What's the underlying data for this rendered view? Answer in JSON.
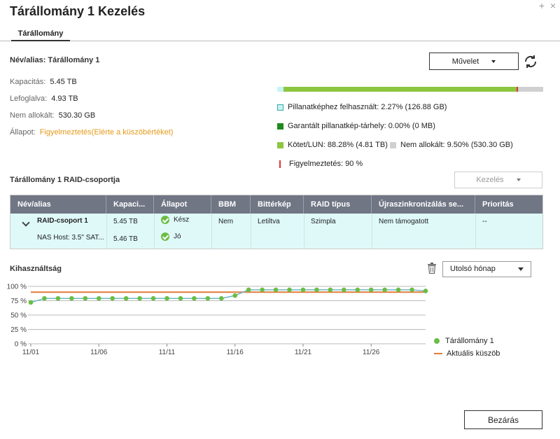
{
  "window": {
    "title": "Tárállomány 1 Kezelés",
    "plus_glyph": "+",
    "close_glyph": "×"
  },
  "tabs": [
    {
      "label": "Tárállomány"
    }
  ],
  "info": {
    "alias": "Név/alias: Tárállomány 1",
    "rows": [
      {
        "label": "Kapacitás:",
        "value": "5.45 TB"
      },
      {
        "label": "Lefoglalva:",
        "value": "4.93 TB"
      },
      {
        "label": "Nem allokált:",
        "value": "530.30 GB"
      }
    ],
    "status_label": "Állapot:",
    "status_value": "Figyelmeztetés(Elérte a küszöbértéket)"
  },
  "toolbar": {
    "action_label": "Művelet",
    "refresh_icon": "refresh-icon"
  },
  "usage": {
    "snapshot_pct": 2.27,
    "volume_pct": 88.28,
    "guaranteed_pct": 0.0,
    "unallocated_pct": 9.5,
    "warning_pct": 90,
    "legend": {
      "snapshot": "Pillanatképhez felhasznált: 2.27% (126.88 GB)",
      "guaranteed": "Garantált pillanatkép-tárhely: 0.00% (0 MB)",
      "volume": "Kötet/LUN: 88.28% (4.81 TB)",
      "unallocated": "Nem allokált: 9.50% (530.30 GB)",
      "warning": "Figyelmeztetés: 90 %"
    },
    "colors": {
      "snapshot": "#c8f4f4",
      "guaranteed": "#1e8a1e",
      "volume": "#8dc63f",
      "unallocated": "#d0d0d0",
      "warning": "#d33"
    }
  },
  "raid": {
    "title": "Tárállomány 1 RAID-csoportja",
    "manage_label": "Kezelés",
    "headers": [
      "Név/alias",
      "Kapaci...",
      "Állapot",
      "BBM",
      "Bittérkép",
      "RAID típus",
      "Újraszinkronizálás se...",
      "Prioritás"
    ],
    "group_row": {
      "name": "RAID-csoport 1",
      "capacity": "5.45 TB",
      "status": "Kész",
      "bbm": "Nem",
      "bitmap": "Letiltva",
      "raid_type": "Szimpla",
      "resync": "Nem támogatott",
      "priority": "--"
    },
    "disk_row": {
      "name": "NAS Host: 3.5\" SAT...",
      "capacity": "5.46 TB",
      "status": "Jó"
    }
  },
  "utilization": {
    "title": "Kihasználtság",
    "range_label": "Utolsó hónap",
    "legend_series": "Tárállomány 1",
    "legend_threshold": "Aktuális küszöb"
  },
  "chart_data": {
    "type": "line",
    "x_ticks": [
      "11/01",
      "11/06",
      "11/11",
      "11/16",
      "11/21",
      "11/26"
    ],
    "y_ticks": [
      "0 %",
      "25 %",
      "50 %",
      "75 %",
      "100 %"
    ],
    "ylim": [
      0,
      100
    ],
    "series": [
      {
        "name": "Tárállomány 1",
        "x": [
          1,
          2,
          3,
          4,
          5,
          6,
          7,
          8,
          9,
          10,
          11,
          12,
          13,
          14,
          15,
          16,
          17,
          18,
          19,
          20,
          21,
          22,
          23,
          24,
          25,
          26,
          27,
          28,
          29,
          30
        ],
        "values": [
          72,
          79,
          79,
          79,
          79,
          79,
          79,
          79,
          79,
          79,
          79,
          79,
          79,
          79,
          79,
          84,
          94,
          94,
          94,
          94,
          94,
          94,
          94,
          94,
          94,
          94,
          94,
          94,
          94,
          92
        ]
      },
      {
        "name": "Aktuális küszöb",
        "constant": 90
      }
    ],
    "colors": {
      "series": "#6bbd45",
      "threshold": "#e07c3a",
      "grid": "#bbb"
    }
  },
  "footer": {
    "close_label": "Bezárás"
  }
}
